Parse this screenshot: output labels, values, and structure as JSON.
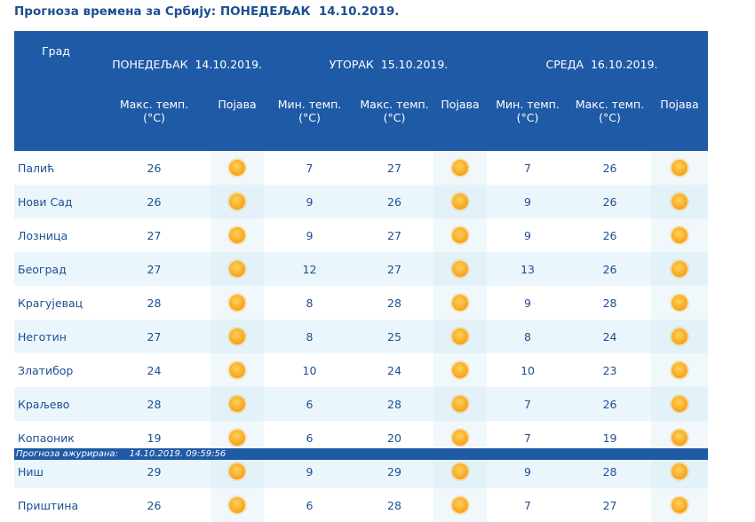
{
  "title": "Прогноза времена за Србију: ПОНЕДЕЉАК  14.10.2019.",
  "header": {
    "city": "Град",
    "days": [
      "ПОНЕДЕЉАК  14.10.2019.",
      "УТОРАК  15.10.2019.",
      "СРЕДА  16.10.2019."
    ],
    "max_temp": "Макс. темп.",
    "min_temp": "Мин. темп.",
    "unit": "(°C)",
    "phenomenon": "Појава"
  },
  "rows": [
    {
      "city": "Палић",
      "d1_max": "26",
      "d2_min": "7",
      "d2_max": "27",
      "d3_min": "7",
      "d3_max": "26",
      "icon": "sun-icon"
    },
    {
      "city": "Нови Сад",
      "d1_max": "26",
      "d2_min": "9",
      "d2_max": "26",
      "d3_min": "9",
      "d3_max": "26",
      "icon": "sun-icon"
    },
    {
      "city": "Лозница",
      "d1_max": "27",
      "d2_min": "9",
      "d2_max": "27",
      "d3_min": "9",
      "d3_max": "26",
      "icon": "sun-icon"
    },
    {
      "city": "Београд",
      "d1_max": "27",
      "d2_min": "12",
      "d2_max": "27",
      "d3_min": "13",
      "d3_max": "26",
      "icon": "sun-icon"
    },
    {
      "city": "Крагујевац",
      "d1_max": "28",
      "d2_min": "8",
      "d2_max": "28",
      "d3_min": "9",
      "d3_max": "28",
      "icon": "sun-icon"
    },
    {
      "city": "Неготин",
      "d1_max": "27",
      "d2_min": "8",
      "d2_max": "25",
      "d3_min": "8",
      "d3_max": "24",
      "icon": "sun-icon"
    },
    {
      "city": "Златибор",
      "d1_max": "24",
      "d2_min": "10",
      "d2_max": "24",
      "d3_min": "10",
      "d3_max": "23",
      "icon": "sun-icon"
    },
    {
      "city": "Краљево",
      "d1_max": "28",
      "d2_min": "6",
      "d2_max": "28",
      "d3_min": "7",
      "d3_max": "26",
      "icon": "sun-icon"
    },
    {
      "city": "Копаоник",
      "d1_max": "19",
      "d2_min": "6",
      "d2_max": "20",
      "d3_min": "7",
      "d3_max": "19",
      "icon": "sun-icon"
    },
    {
      "city": "Ниш",
      "d1_max": "29",
      "d2_min": "9",
      "d2_max": "29",
      "d3_min": "9",
      "d3_max": "28",
      "icon": "sun-icon"
    },
    {
      "city": "Приштина",
      "d1_max": "26",
      "d2_min": "6",
      "d2_max": "28",
      "d3_min": "7",
      "d3_max": "27",
      "icon": "sun-icon"
    }
  ],
  "footer": {
    "label": "Прогноза ажурирана:",
    "timestamp": "14.10.2019. 09:59:56"
  },
  "colors": {
    "header_bg": "#1f5aa6",
    "text": "#1d4f91",
    "alt_row": "#ebf6fc"
  }
}
